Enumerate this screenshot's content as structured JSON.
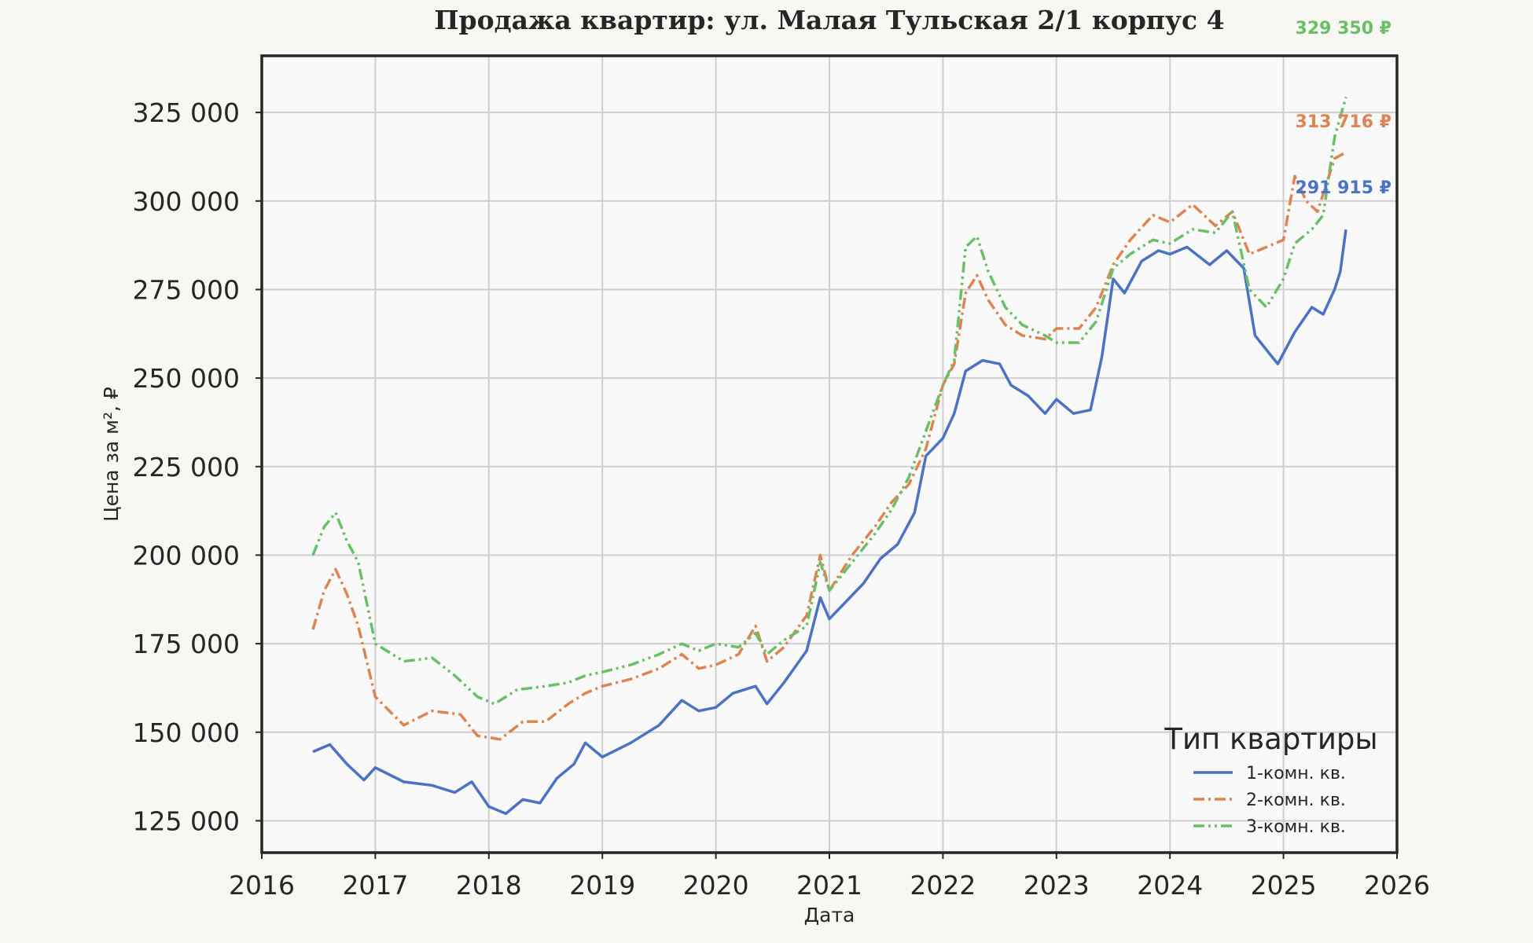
{
  "chart_data": {
    "type": "line",
    "title": "Продажа квартир: ул. Малая Тульская 2/1 корпус 4",
    "xlabel": "Дата",
    "ylabel": "Цена за м², ₽",
    "xlim": [
      2016,
      2026
    ],
    "ylim": [
      116000,
      341000
    ],
    "x_ticks": [
      2016,
      2017,
      2018,
      2019,
      2020,
      2021,
      2022,
      2023,
      2024,
      2025,
      2026
    ],
    "y_ticks": [
      125000,
      150000,
      175000,
      200000,
      225000,
      250000,
      275000,
      300000,
      325000
    ],
    "y_tick_labels": [
      "125 000",
      "150 000",
      "175 000",
      "200 000",
      "225 000",
      "250 000",
      "275 000",
      "300 000",
      "325 000"
    ],
    "grid": true,
    "legend": {
      "title": "Тип квартиры",
      "placement": "lower-right"
    },
    "series": [
      {
        "name": "1-комн. кв.",
        "color": "#4c72c4",
        "dash": "solid",
        "end_label": "291 915 ₽",
        "points": [
          [
            2016.45,
            144500
          ],
          [
            2016.6,
            146500
          ],
          [
            2016.75,
            141000
          ],
          [
            2016.9,
            136500
          ],
          [
            2017.0,
            140000
          ],
          [
            2017.25,
            136000
          ],
          [
            2017.5,
            135000
          ],
          [
            2017.7,
            133000
          ],
          [
            2017.85,
            136000
          ],
          [
            2018.0,
            129000
          ],
          [
            2018.15,
            127000
          ],
          [
            2018.3,
            131000
          ],
          [
            2018.45,
            130000
          ],
          [
            2018.6,
            137000
          ],
          [
            2018.75,
            141000
          ],
          [
            2018.85,
            147000
          ],
          [
            2019.0,
            143000
          ],
          [
            2019.25,
            147000
          ],
          [
            2019.5,
            152000
          ],
          [
            2019.7,
            159000
          ],
          [
            2019.85,
            156000
          ],
          [
            2020.0,
            157000
          ],
          [
            2020.15,
            161000
          ],
          [
            2020.35,
            163000
          ],
          [
            2020.45,
            158000
          ],
          [
            2020.6,
            164000
          ],
          [
            2020.8,
            173000
          ],
          [
            2020.92,
            188000
          ],
          [
            2021.0,
            182000
          ],
          [
            2021.15,
            187000
          ],
          [
            2021.3,
            192000
          ],
          [
            2021.45,
            199000
          ],
          [
            2021.6,
            203000
          ],
          [
            2021.75,
            212000
          ],
          [
            2021.85,
            228000
          ],
          [
            2022.0,
            233000
          ],
          [
            2022.1,
            240000
          ],
          [
            2022.2,
            252000
          ],
          [
            2022.35,
            255000
          ],
          [
            2022.5,
            254000
          ],
          [
            2022.6,
            248000
          ],
          [
            2022.75,
            245000
          ],
          [
            2022.9,
            240000
          ],
          [
            2023.0,
            244000
          ],
          [
            2023.15,
            240000
          ],
          [
            2023.3,
            241000
          ],
          [
            2023.4,
            256000
          ],
          [
            2023.5,
            278000
          ],
          [
            2023.6,
            274000
          ],
          [
            2023.75,
            283000
          ],
          [
            2023.9,
            286000
          ],
          [
            2024.0,
            285000
          ],
          [
            2024.15,
            287000
          ],
          [
            2024.35,
            282000
          ],
          [
            2024.5,
            286000
          ],
          [
            2024.65,
            281000
          ],
          [
            2024.75,
            262000
          ],
          [
            2024.85,
            258000
          ],
          [
            2024.95,
            254000
          ],
          [
            2025.1,
            263000
          ],
          [
            2025.25,
            270000
          ],
          [
            2025.35,
            268000
          ],
          [
            2025.45,
            275000
          ],
          [
            2025.5,
            280000
          ],
          [
            2025.55,
            291915
          ]
        ]
      },
      {
        "name": "2-комн. кв.",
        "color": "#dd8452",
        "dash": "dashdot",
        "end_label": "313 716 ₽",
        "points": [
          [
            2016.45,
            179000
          ],
          [
            2016.55,
            190000
          ],
          [
            2016.65,
            196000
          ],
          [
            2016.75,
            189000
          ],
          [
            2016.85,
            180000
          ],
          [
            2017.0,
            160000
          ],
          [
            2017.25,
            152000
          ],
          [
            2017.5,
            156000
          ],
          [
            2017.75,
            155000
          ],
          [
            2017.9,
            149000
          ],
          [
            2018.1,
            148000
          ],
          [
            2018.3,
            153000
          ],
          [
            2018.5,
            153000
          ],
          [
            2018.7,
            158000
          ],
          [
            2018.85,
            161000
          ],
          [
            2019.0,
            163000
          ],
          [
            2019.25,
            165000
          ],
          [
            2019.5,
            168000
          ],
          [
            2019.7,
            172000
          ],
          [
            2019.85,
            168000
          ],
          [
            2020.0,
            169000
          ],
          [
            2020.2,
            172000
          ],
          [
            2020.35,
            180000
          ],
          [
            2020.45,
            170000
          ],
          [
            2020.6,
            174000
          ],
          [
            2020.8,
            183000
          ],
          [
            2020.92,
            200000
          ],
          [
            2021.0,
            190000
          ],
          [
            2021.2,
            200000
          ],
          [
            2021.4,
            208000
          ],
          [
            2021.55,
            215000
          ],
          [
            2021.7,
            220000
          ],
          [
            2021.85,
            230000
          ],
          [
            2022.0,
            248000
          ],
          [
            2022.1,
            254000
          ],
          [
            2022.2,
            274000
          ],
          [
            2022.3,
            279000
          ],
          [
            2022.4,
            272000
          ],
          [
            2022.55,
            265000
          ],
          [
            2022.7,
            262000
          ],
          [
            2022.9,
            261000
          ],
          [
            2023.0,
            264000
          ],
          [
            2023.2,
            264000
          ],
          [
            2023.35,
            270000
          ],
          [
            2023.5,
            282000
          ],
          [
            2023.65,
            289000
          ],
          [
            2023.85,
            296000
          ],
          [
            2024.0,
            294000
          ],
          [
            2024.2,
            299000
          ],
          [
            2024.4,
            293000
          ],
          [
            2024.55,
            297000
          ],
          [
            2024.7,
            285000
          ],
          [
            2024.85,
            287000
          ],
          [
            2025.0,
            289000
          ],
          [
            2025.1,
            307000
          ],
          [
            2025.2,
            300000
          ],
          [
            2025.3,
            297000
          ],
          [
            2025.45,
            312000
          ],
          [
            2025.55,
            313716
          ]
        ]
      },
      {
        "name": "3-комн. кв.",
        "color": "#6abf69",
        "dash": "dashdotdot",
        "end_label": "329 350 ₽",
        "points": [
          [
            2016.45,
            200000
          ],
          [
            2016.55,
            208000
          ],
          [
            2016.65,
            212000
          ],
          [
            2016.75,
            204000
          ],
          [
            2016.85,
            198000
          ],
          [
            2017.0,
            175000
          ],
          [
            2017.25,
            170000
          ],
          [
            2017.5,
            171000
          ],
          [
            2017.7,
            166000
          ],
          [
            2017.9,
            160000
          ],
          [
            2018.05,
            158000
          ],
          [
            2018.25,
            162000
          ],
          [
            2018.5,
            163000
          ],
          [
            2018.7,
            164000
          ],
          [
            2018.85,
            166000
          ],
          [
            2019.0,
            167000
          ],
          [
            2019.25,
            169000
          ],
          [
            2019.5,
            172000
          ],
          [
            2019.7,
            175000
          ],
          [
            2019.85,
            173000
          ],
          [
            2020.0,
            175000
          ],
          [
            2020.2,
            174000
          ],
          [
            2020.35,
            178000
          ],
          [
            2020.45,
            172000
          ],
          [
            2020.6,
            176000
          ],
          [
            2020.8,
            180000
          ],
          [
            2020.92,
            198000
          ],
          [
            2021.0,
            190000
          ],
          [
            2021.2,
            198000
          ],
          [
            2021.4,
            206000
          ],
          [
            2021.55,
            213000
          ],
          [
            2021.7,
            222000
          ],
          [
            2021.85,
            235000
          ],
          [
            2022.0,
            248000
          ],
          [
            2022.1,
            255000
          ],
          [
            2022.2,
            287000
          ],
          [
            2022.3,
            290000
          ],
          [
            2022.4,
            280000
          ],
          [
            2022.55,
            270000
          ],
          [
            2022.7,
            265000
          ],
          [
            2022.9,
            262000
          ],
          [
            2023.0,
            260000
          ],
          [
            2023.2,
            260000
          ],
          [
            2023.35,
            266000
          ],
          [
            2023.5,
            281000
          ],
          [
            2023.65,
            285000
          ],
          [
            2023.85,
            289000
          ],
          [
            2024.0,
            288000
          ],
          [
            2024.2,
            292000
          ],
          [
            2024.4,
            291000
          ],
          [
            2024.55,
            297000
          ],
          [
            2024.7,
            275000
          ],
          [
            2024.85,
            270000
          ],
          [
            2025.0,
            278000
          ],
          [
            2025.1,
            288000
          ],
          [
            2025.25,
            292000
          ],
          [
            2025.35,
            296000
          ],
          [
            2025.45,
            318000
          ],
          [
            2025.55,
            329350
          ]
        ]
      }
    ]
  }
}
